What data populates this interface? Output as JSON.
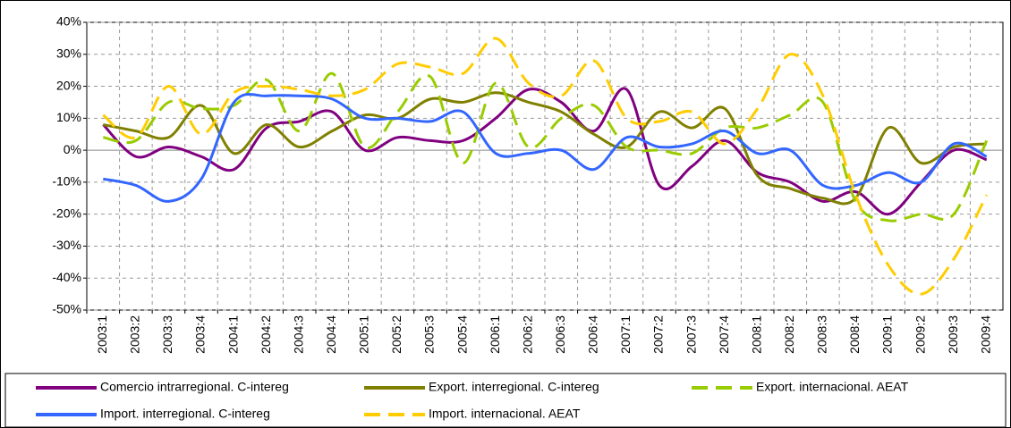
{
  "chart_data": {
    "type": "line",
    "categories": [
      "2003:1",
      "2003:2",
      "2003:3",
      "2003:4",
      "2004:1",
      "2004:2",
      "2004:3",
      "2004:4",
      "2005:1",
      "2005:2",
      "2005:3",
      "2005:4",
      "2006:1",
      "2006:2",
      "2006:3",
      "2006:4",
      "2007:1",
      "2007:2",
      "2007:3",
      "2007:4",
      "2008:1",
      "2008:2",
      "2008:3",
      "2008:4",
      "2009:1",
      "2009:2",
      "2009:3",
      "2009:4"
    ],
    "series": [
      {
        "name": "Comercio intrarregional. C-intereg",
        "color": "#800080",
        "dashed": false,
        "values": [
          8,
          -2,
          1,
          -2,
          -6,
          7,
          9,
          12,
          0,
          4,
          3,
          3,
          10,
          19,
          15,
          6,
          19,
          -11,
          -5,
          3,
          -7,
          -10,
          -16,
          -13,
          -20,
          -10,
          0,
          -3
        ]
      },
      {
        "name": "Export. interregional. C-intereg",
        "color": "#808000",
        "dashed": false,
        "values": [
          8,
          6,
          4,
          14,
          -1,
          8,
          1,
          6,
          11,
          10,
          16,
          15,
          18,
          15,
          12,
          5,
          1,
          12,
          7,
          13,
          -8,
          -12,
          -15,
          -15,
          7,
          -4,
          1,
          2
        ]
      },
      {
        "name": "Export. internacional. AEAT",
        "color": "#99cc00",
        "dashed": true,
        "values": [
          4,
          3,
          15,
          13,
          14,
          22,
          6,
          24,
          1,
          12,
          23,
          -4,
          21,
          1,
          10,
          14,
          1,
          0,
          -1,
          7,
          7,
          11,
          15,
          -16,
          -22,
          -20,
          -20,
          3
        ]
      },
      {
        "name": "Import. interregional. C-intereg",
        "color": "#3366ff",
        "dashed": false,
        "values": [
          -9,
          -11,
          -16,
          -9,
          15,
          17,
          17,
          16,
          10,
          10,
          9,
          12,
          -1,
          -1,
          0,
          -6,
          4,
          1,
          2,
          6,
          -1,
          0,
          -11,
          -11,
          -7,
          -10,
          2,
          -2
        ]
      },
      {
        "name": "Import. internacional. AEAT",
        "color": "#ffcc00",
        "dashed": true,
        "values": [
          11,
          4,
          20,
          5,
          18,
          20,
          19,
          17,
          19,
          27,
          26,
          24,
          35,
          21,
          17,
          28,
          10,
          9,
          12,
          2,
          13,
          30,
          17,
          -14,
          -36,
          -45,
          -34,
          -14
        ]
      }
    ],
    "ylim": [
      -50,
      40
    ],
    "yticks": [
      {
        "value": -50,
        "label": "-50%"
      },
      {
        "value": -40,
        "label": "-40%"
      },
      {
        "value": -30,
        "label": "-30%"
      },
      {
        "value": -20,
        "label": "-20%"
      },
      {
        "value": -10,
        "label": "-10%"
      },
      {
        "value": 0,
        "label": "0%"
      },
      {
        "value": 10,
        "label": "10%"
      },
      {
        "value": 20,
        "label": "20%"
      },
      {
        "value": 30,
        "label": "30%"
      },
      {
        "value": 40,
        "label": "40%"
      }
    ],
    "grid": true
  }
}
